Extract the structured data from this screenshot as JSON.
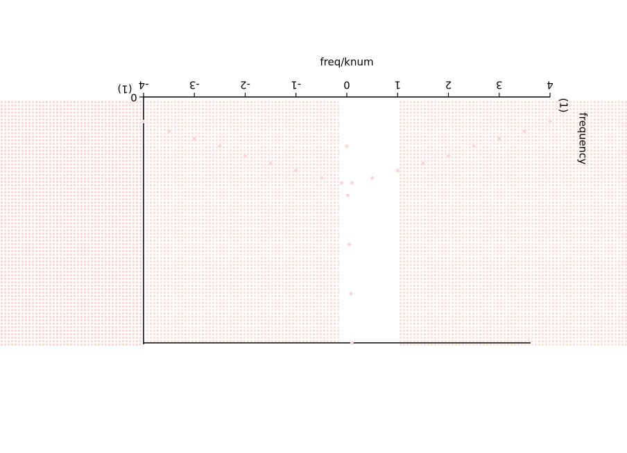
{
  "chart_data": {
    "type": "scatter",
    "x_label": "freq/knum",
    "y_label": "frequency",
    "x_unit": "(1)",
    "y_unit": "(1)",
    "xlim": [
      -4,
      4
    ],
    "xticks": [
      -4,
      -3,
      -2,
      -1,
      0,
      1,
      2,
      3,
      4
    ],
    "ylim": [
      0,
      1
    ],
    "yticks": [
      0
    ],
    "color": "#ffd3d3",
    "series": [
      {
        "x": [
          0.1,
          0.5,
          1,
          1.5,
          2,
          2.5,
          3,
          3.5,
          4
        ],
        "values": [
          0.35,
          0.33,
          0.3,
          0.27,
          0.24,
          0.2,
          0.17,
          0.14,
          0.1
        ]
      },
      {
        "x": [
          -0.1,
          -0.5,
          -1,
          -1.5,
          -2,
          -2.5,
          -3,
          -3.5,
          -4
        ],
        "values": [
          0.35,
          0.33,
          0.3,
          0.27,
          0.24,
          0.2,
          0.17,
          0.14,
          0.1
        ]
      },
      {
        "x": [
          0,
          0.02,
          0.05,
          0.08,
          0.1
        ],
        "values": [
          0.2,
          0.4,
          0.6,
          0.8,
          1.0
        ]
      }
    ]
  }
}
